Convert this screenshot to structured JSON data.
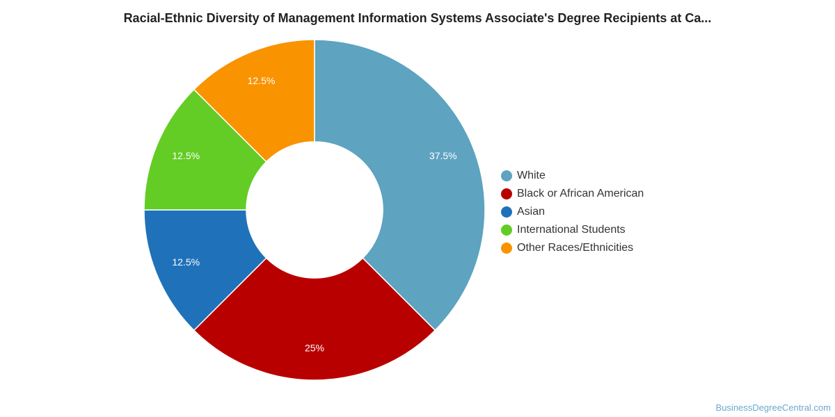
{
  "chart_data": {
    "type": "pie",
    "title": "Racial-Ethnic Diversity of Management Information Systems Associate's Degree Recipients at Ca...",
    "donut": true,
    "slices": [
      {
        "label": "White",
        "value": 37.5,
        "display": "37.5%",
        "color": "#5ea3c0"
      },
      {
        "label": "Black or African American",
        "value": 25,
        "display": "25%",
        "color": "#b90000"
      },
      {
        "label": "Asian",
        "value": 12.5,
        "display": "12.5%",
        "color": "#1f72b9"
      },
      {
        "label": "International Students",
        "value": 12.5,
        "display": "12.5%",
        "color": "#63cc25"
      },
      {
        "label": "Other Races/Ethnicities",
        "value": 12.5,
        "display": "12.5%",
        "color": "#f99300"
      }
    ],
    "legend_position": "right"
  },
  "footer": {
    "source": "BusinessDegreeCentral.com"
  }
}
